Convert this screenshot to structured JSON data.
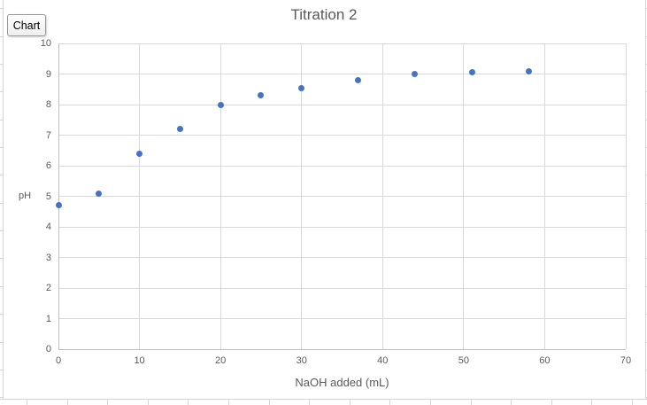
{
  "chart_button": {
    "label": "Chart"
  },
  "chart_data": {
    "type": "scatter",
    "title": "Titration 2",
    "xlabel": "NaOH added (mL)",
    "ylabel": "pH",
    "xlim": [
      0,
      70
    ],
    "ylim": [
      0,
      10
    ],
    "x_ticks": [
      0,
      10,
      20,
      30,
      40,
      50,
      60,
      70
    ],
    "y_ticks": [
      0,
      1,
      2,
      3,
      4,
      5,
      6,
      7,
      8,
      9,
      10
    ],
    "grid": true,
    "legend_position": "none",
    "marker_color": "#4472C4",
    "points": [
      {
        "x": 0,
        "y": 4.7
      },
      {
        "x": 5,
        "y": 5.1
      },
      {
        "x": 10,
        "y": 6.4
      },
      {
        "x": 15,
        "y": 7.2
      },
      {
        "x": 20,
        "y": 8.0
      },
      {
        "x": 25,
        "y": 8.3
      },
      {
        "x": 30,
        "y": 8.55
      },
      {
        "x": 37,
        "y": 8.8
      },
      {
        "x": 44,
        "y": 9.0
      },
      {
        "x": 51,
        "y": 9.05
      },
      {
        "x": 58,
        "y": 9.1
      }
    ]
  },
  "colors": {
    "gridline": "#D9D9D9",
    "axis_line": "#BFBFBF",
    "label_text": "#595959",
    "sheet_gridline": "#D6D6D6",
    "chart_border": "#D4D4D4"
  }
}
